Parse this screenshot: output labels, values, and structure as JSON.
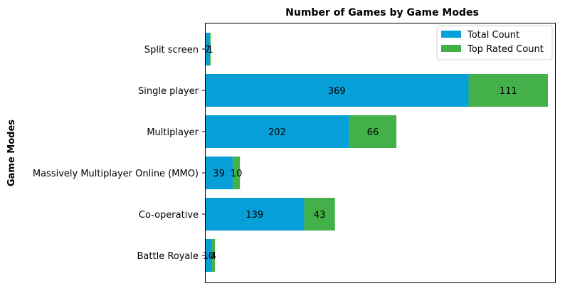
{
  "chart_data": {
    "type": "bar",
    "orientation": "horizontal",
    "stacked": true,
    "title": "Number of Games by Game Modes",
    "xlabel": "",
    "ylabel": "Game Modes",
    "categories": [
      "Battle Royale",
      "Co-operative",
      "Massively Multiplayer Online (MMO)",
      "Multiplayer",
      "Single player",
      "Split screen"
    ],
    "series": [
      {
        "name": "Total Count",
        "color": "#069fd8",
        "values": [
          10,
          139,
          39,
          202,
          369,
          7
        ]
      },
      {
        "name": "Top Rated Count",
        "color": "#43b04a",
        "values": [
          4,
          43,
          10,
          66,
          111,
          1
        ]
      }
    ],
    "xlim": [
      0,
      490
    ],
    "x_ticks_visible": false,
    "grid": false,
    "legend": {
      "position": "top-right"
    }
  }
}
